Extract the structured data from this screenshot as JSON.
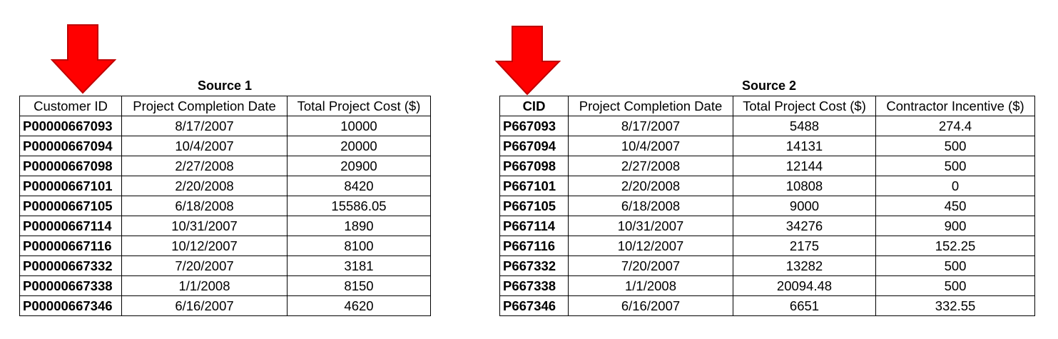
{
  "source1": {
    "title": "Source 1",
    "headers": [
      "Customer ID",
      "Project Completion Date",
      "Total Project Cost ($)"
    ],
    "rows": [
      [
        "P00000667093",
        "8/17/2007",
        "10000"
      ],
      [
        "P00000667094",
        "10/4/2007",
        "20000"
      ],
      [
        "P00000667098",
        "2/27/2008",
        "20900"
      ],
      [
        "P00000667101",
        "2/20/2008",
        "8420"
      ],
      [
        "P00000667105",
        "6/18/2008",
        "15586.05"
      ],
      [
        "P00000667114",
        "10/31/2007",
        "1890"
      ],
      [
        "P00000667116",
        "10/12/2007",
        "8100"
      ],
      [
        "P00000667332",
        "7/20/2007",
        "3181"
      ],
      [
        "P00000667338",
        "1/1/2008",
        "8150"
      ],
      [
        "P00000667346",
        "6/16/2007",
        "4620"
      ]
    ]
  },
  "source2": {
    "title": "Source 2",
    "headers": [
      "CID",
      "Project Completion Date",
      "Total Project Cost ($)",
      "Contractor Incentive ($)"
    ],
    "rows": [
      [
        "P667093",
        "8/17/2007",
        "5488",
        "274.4"
      ],
      [
        "P667094",
        "10/4/2007",
        "14131",
        "500"
      ],
      [
        "P667098",
        "2/27/2008",
        "12144",
        "500"
      ],
      [
        "P667101",
        "2/20/2008",
        "10808",
        "0"
      ],
      [
        "P667105",
        "6/18/2008",
        "9000",
        "450"
      ],
      [
        "P667114",
        "10/31/2007",
        "34276",
        "900"
      ],
      [
        "P667116",
        "10/12/2007",
        "2175",
        "152.25"
      ],
      [
        "P667332",
        "7/20/2007",
        "13282",
        "500"
      ],
      [
        "P667338",
        "1/1/2008",
        "20094.48",
        "500"
      ],
      [
        "P667346",
        "6/16/2007",
        "6651",
        "332.55"
      ]
    ]
  },
  "colors": {
    "arrow_fill": "#ff0000",
    "arrow_stroke": "#c00000"
  },
  "icons": {
    "arrow": "red-down-arrow-icon"
  }
}
